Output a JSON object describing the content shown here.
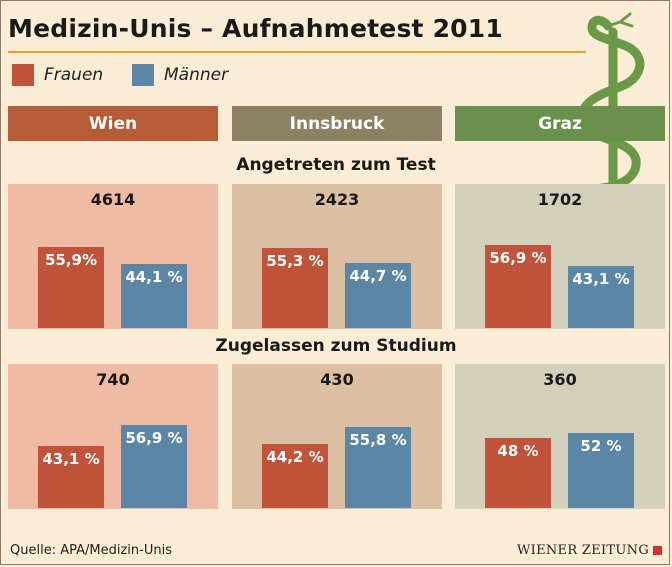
{
  "title": "Medizin-Unis – Aufnahmetest 2011",
  "legend": [
    {
      "label": "Frauen",
      "color": "#c1533a"
    },
    {
      "label": "Männer",
      "color": "#5b86a6"
    }
  ],
  "cities": [
    {
      "name": "Wien",
      "header_color": "#b65c38",
      "panel_color": "#efbba4"
    },
    {
      "name": "Innsbruck",
      "header_color": "#8c8263",
      "panel_color": "#dcc0a4"
    },
    {
      "name": "Graz",
      "header_color": "#69904d",
      "panel_color": "#d2d0b9"
    }
  ],
  "sections": {
    "tested": "Angetreten zum Test",
    "admitted": "Zugelassen zum Studium"
  },
  "source": "Quelle: APA/Medizin-Unis",
  "brand": "WIENER ZEITUNG",
  "colors": {
    "frauen": "#c1533a",
    "maenner": "#5b86a6",
    "title_rule": "#e0a526",
    "logo": "#6a9a48"
  },
  "chart_data": [
    {
      "type": "bar",
      "title": "Angetreten zum Test",
      "categories": [
        "Wien",
        "Innsbruck",
        "Graz"
      ],
      "totals": [
        4614,
        2423,
        1702
      ],
      "totals_labels": [
        "4614",
        "2423",
        "1702"
      ],
      "series": [
        {
          "name": "Frauen",
          "values": [
            55.9,
            55.3,
            56.9
          ],
          "labels": [
            "55,9%",
            "55,3 %",
            "56,9 %"
          ]
        },
        {
          "name": "Männer",
          "values": [
            44.1,
            44.7,
            43.1
          ],
          "labels": [
            "44,1 %",
            "44,7 %",
            "43,1 %"
          ]
        }
      ],
      "ylim": [
        0,
        60
      ]
    },
    {
      "type": "bar",
      "title": "Zugelassen zum Studium",
      "categories": [
        "Wien",
        "Innsbruck",
        "Graz"
      ],
      "totals": [
        740,
        430,
        360
      ],
      "totals_labels": [
        "740",
        "430",
        "360"
      ],
      "series": [
        {
          "name": "Frauen",
          "values": [
            43.1,
            44.2,
            48
          ],
          "labels": [
            "43,1 %",
            "44,2 %",
            "48 %"
          ]
        },
        {
          "name": "Männer",
          "values": [
            56.9,
            55.8,
            52
          ],
          "labels": [
            "56,9 %",
            "55,8 %",
            "52 %"
          ]
        }
      ],
      "ylim": [
        0,
        60
      ]
    }
  ]
}
